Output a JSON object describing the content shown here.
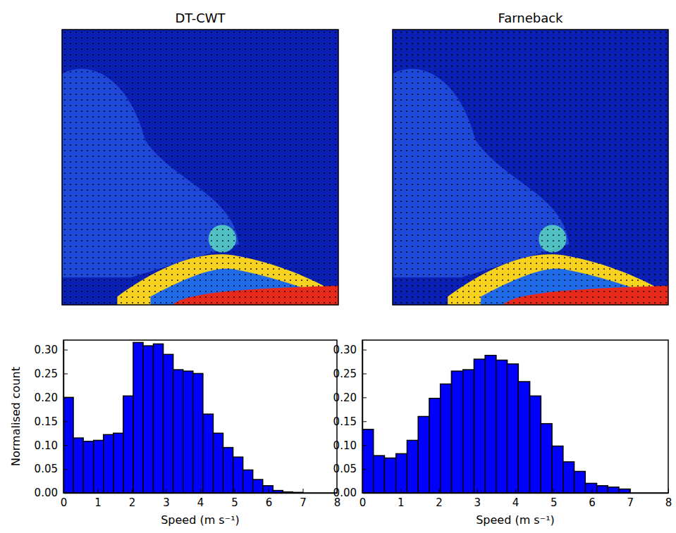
{
  "chart_data": [
    {
      "type": "histogram",
      "title": "DT-CWT",
      "xlabel": "Speed (m s⁻¹)",
      "ylabel": "Normalised count",
      "color": "#0000ff",
      "bins": [
        0,
        0.29,
        0.58,
        0.88,
        1.17,
        1.46,
        1.75,
        2.04,
        2.33,
        2.63,
        2.92,
        3.21,
        3.5,
        3.79,
        4.08,
        4.38,
        4.67,
        4.96,
        5.25,
        5.54,
        5.83,
        6.13,
        6.42,
        6.71,
        7.0
      ],
      "counts": [
        0.2,
        0.115,
        0.108,
        0.11,
        0.122,
        0.125,
        0.203,
        0.315,
        0.308,
        0.312,
        0.29,
        0.258,
        0.255,
        0.25,
        0.165,
        0.125,
        0.095,
        0.075,
        0.048,
        0.028,
        0.015,
        0.005,
        0.002,
        0.001
      ],
      "xlim": [
        0,
        8
      ],
      "xticks": [
        0,
        1,
        2,
        3,
        4,
        5,
        6,
        7,
        8
      ],
      "ylim": [
        0,
        0.32
      ],
      "yticks": [
        {
          "value": 0,
          "label": "0.00"
        },
        {
          "value": 0.05,
          "label": "0.05"
        },
        {
          "value": 0.1,
          "label": "0.10"
        },
        {
          "value": 0.15,
          "label": "0.15"
        },
        {
          "value": 0.2,
          "label": "0.20"
        },
        {
          "value": 0.25,
          "label": "0.25"
        },
        {
          "value": 0.3,
          "label": "0.30"
        }
      ]
    },
    {
      "type": "histogram",
      "title": "Farneback",
      "xlabel": "Speed (m s⁻¹)",
      "color": "#0000ff",
      "bins": [
        0,
        0.29,
        0.58,
        0.88,
        1.17,
        1.46,
        1.75,
        2.04,
        2.33,
        2.63,
        2.92,
        3.21,
        3.5,
        3.79,
        4.08,
        4.38,
        4.67,
        4.96,
        5.25,
        5.54,
        5.83,
        6.13,
        6.42,
        6.71,
        7.0
      ],
      "counts": [
        0.133,
        0.078,
        0.073,
        0.082,
        0.11,
        0.16,
        0.198,
        0.228,
        0.255,
        0.258,
        0.28,
        0.288,
        0.278,
        0.27,
        0.233,
        0.203,
        0.145,
        0.098,
        0.065,
        0.045,
        0.02,
        0.015,
        0.012,
        0.008
      ],
      "xlim": [
        0,
        8
      ],
      "xticks": [
        0,
        1,
        2,
        3,
        4,
        5,
        6,
        7,
        8
      ],
      "ylim": [
        0,
        0.32
      ],
      "yticks": [
        {
          "value": 0,
          "label": "0.00"
        },
        {
          "value": 0.05,
          "label": "0.05"
        },
        {
          "value": 0.1,
          "label": "0.10"
        },
        {
          "value": 0.15,
          "label": "0.15"
        },
        {
          "value": 0.2,
          "label": "0.20"
        },
        {
          "value": 0.25,
          "label": "0.25"
        },
        {
          "value": 0.3,
          "label": "0.30"
        }
      ]
    }
  ]
}
